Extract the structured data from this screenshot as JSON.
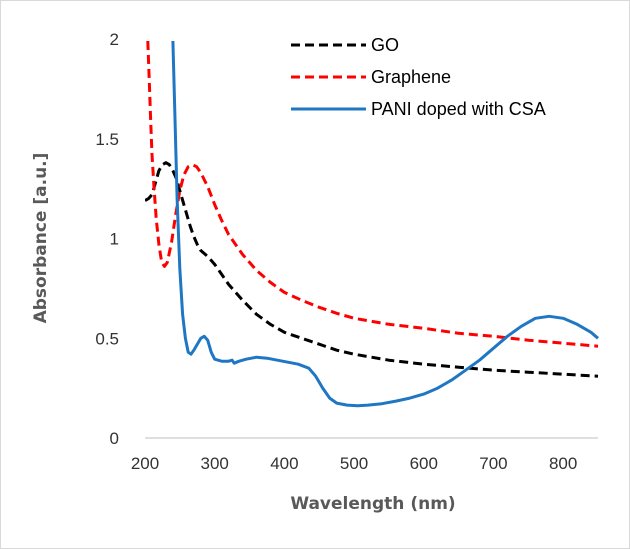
{
  "chart_data": {
    "type": "line",
    "title": "",
    "xlabel": "Wavelength (nm)",
    "ylabel": "Absorbance [a.u.]",
    "xlim": [
      200,
      850
    ],
    "ylim": [
      0,
      2
    ],
    "x_ticks": [
      200,
      300,
      400,
      500,
      600,
      700,
      800
    ],
    "y_ticks": [
      0,
      0.5,
      1,
      1.5,
      2
    ],
    "x_tick_labels": [
      "200",
      "300",
      "400",
      "500",
      "600",
      "700",
      "800"
    ],
    "y_tick_labels": [
      "0",
      "0.5",
      "1",
      "1.5",
      "2"
    ],
    "grid": false,
    "legend_position": "top-right",
    "series": [
      {
        "name": "GO",
        "color": "#000000",
        "style": "dashed",
        "points": [
          [
            200,
            1.19
          ],
          [
            205,
            1.2
          ],
          [
            210,
            1.22
          ],
          [
            215,
            1.28
          ],
          [
            220,
            1.34
          ],
          [
            225,
            1.37
          ],
          [
            230,
            1.38
          ],
          [
            235,
            1.37
          ],
          [
            240,
            1.34
          ],
          [
            245,
            1.3
          ],
          [
            250,
            1.24
          ],
          [
            255,
            1.18
          ],
          [
            260,
            1.12
          ],
          [
            265,
            1.06
          ],
          [
            270,
            1.01
          ],
          [
            275,
            0.97
          ],
          [
            280,
            0.94
          ],
          [
            290,
            0.91
          ],
          [
            300,
            0.87
          ],
          [
            310,
            0.82
          ],
          [
            320,
            0.77
          ],
          [
            340,
            0.69
          ],
          [
            360,
            0.62
          ],
          [
            380,
            0.57
          ],
          [
            400,
            0.53
          ],
          [
            425,
            0.5
          ],
          [
            450,
            0.47
          ],
          [
            475,
            0.44
          ],
          [
            500,
            0.42
          ],
          [
            550,
            0.39
          ],
          [
            600,
            0.37
          ],
          [
            650,
            0.355
          ],
          [
            700,
            0.34
          ],
          [
            750,
            0.33
          ],
          [
            800,
            0.32
          ],
          [
            850,
            0.31
          ]
        ]
      },
      {
        "name": "Graphene",
        "color": "#ff0000",
        "style": "dashed",
        "points": [
          [
            204,
            1.99
          ],
          [
            206,
            1.8
          ],
          [
            208,
            1.6
          ],
          [
            210,
            1.42
          ],
          [
            213,
            1.25
          ],
          [
            216,
            1.1
          ],
          [
            220,
            0.97
          ],
          [
            224,
            0.88
          ],
          [
            228,
            0.86
          ],
          [
            232,
            0.88
          ],
          [
            238,
            0.98
          ],
          [
            244,
            1.12
          ],
          [
            250,
            1.24
          ],
          [
            256,
            1.32
          ],
          [
            262,
            1.36
          ],
          [
            268,
            1.37
          ],
          [
            274,
            1.36
          ],
          [
            280,
            1.33
          ],
          [
            290,
            1.26
          ],
          [
            300,
            1.17
          ],
          [
            310,
            1.09
          ],
          [
            320,
            1.02
          ],
          [
            340,
            0.92
          ],
          [
            360,
            0.84
          ],
          [
            380,
            0.78
          ],
          [
            400,
            0.73
          ],
          [
            425,
            0.69
          ],
          [
            450,
            0.655
          ],
          [
            475,
            0.625
          ],
          [
            500,
            0.6
          ],
          [
            550,
            0.57
          ],
          [
            600,
            0.55
          ],
          [
            650,
            0.525
          ],
          [
            700,
            0.51
          ],
          [
            750,
            0.49
          ],
          [
            800,
            0.475
          ],
          [
            850,
            0.46
          ]
        ]
      },
      {
        "name": "PANI doped with CSA",
        "color": "#1f77c4",
        "style": "solid",
        "points": [
          [
            240,
            1.99
          ],
          [
            243,
            1.6
          ],
          [
            246,
            1.2
          ],
          [
            250,
            0.85
          ],
          [
            254,
            0.62
          ],
          [
            258,
            0.5
          ],
          [
            262,
            0.43
          ],
          [
            266,
            0.42
          ],
          [
            270,
            0.44
          ],
          [
            275,
            0.47
          ],
          [
            280,
            0.5
          ],
          [
            285,
            0.51
          ],
          [
            290,
            0.49
          ],
          [
            295,
            0.43
          ],
          [
            300,
            0.395
          ],
          [
            310,
            0.385
          ],
          [
            320,
            0.385
          ],
          [
            325,
            0.39
          ],
          [
            328,
            0.375
          ],
          [
            335,
            0.385
          ],
          [
            345,
            0.395
          ],
          [
            360,
            0.405
          ],
          [
            375,
            0.4
          ],
          [
            390,
            0.39
          ],
          [
            405,
            0.38
          ],
          [
            420,
            0.37
          ],
          [
            435,
            0.35
          ],
          [
            445,
            0.31
          ],
          [
            455,
            0.25
          ],
          [
            465,
            0.2
          ],
          [
            475,
            0.175
          ],
          [
            490,
            0.165
          ],
          [
            505,
            0.162
          ],
          [
            520,
            0.165
          ],
          [
            540,
            0.172
          ],
          [
            560,
            0.185
          ],
          [
            580,
            0.2
          ],
          [
            600,
            0.22
          ],
          [
            620,
            0.25
          ],
          [
            640,
            0.29
          ],
          [
            660,
            0.34
          ],
          [
            680,
            0.39
          ],
          [
            700,
            0.45
          ],
          [
            720,
            0.51
          ],
          [
            740,
            0.56
          ],
          [
            760,
            0.6
          ],
          [
            780,
            0.61
          ],
          [
            800,
            0.6
          ],
          [
            820,
            0.57
          ],
          [
            840,
            0.53
          ],
          [
            850,
            0.5
          ]
        ]
      }
    ]
  }
}
